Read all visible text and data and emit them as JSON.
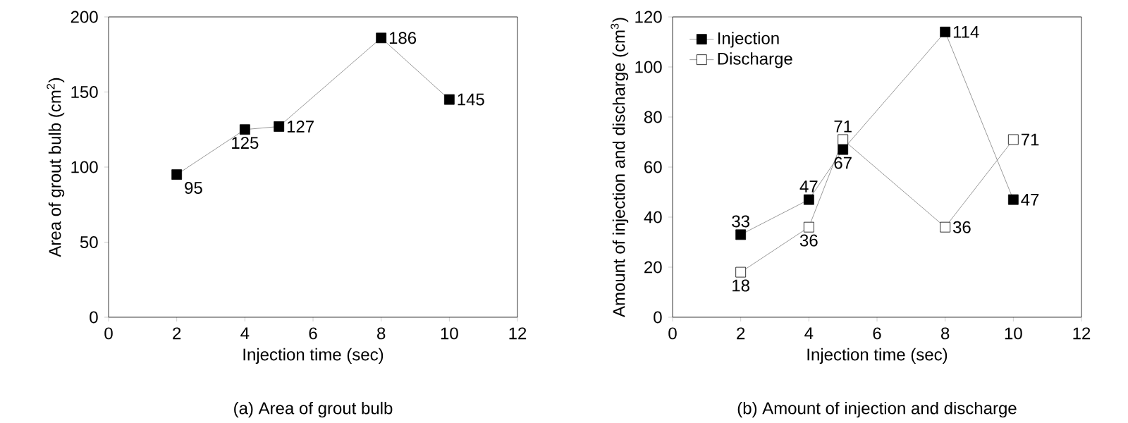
{
  "chart_data": [
    {
      "type": "line",
      "title": "(a) Area of grout bulb",
      "xlabel": "Injection time (sec)",
      "ylabel": "Area of grout bulb (cm$^{2}$)",
      "x": [
        2,
        4,
        5,
        8,
        10
      ],
      "series": [
        {
          "color": "#000000",
          "values": [
            95,
            125,
            127,
            186,
            145
          ]
        }
      ],
      "xlim": [
        0,
        12
      ],
      "ylim": [
        0,
        200
      ],
      "xticks": [
        0,
        2,
        4,
        6,
        8,
        10,
        12
      ],
      "yticks": [
        0,
        50,
        100,
        150,
        200
      ],
      "marker": "square",
      "data_labels": true,
      "legend": false,
      "grid": false
    },
    {
      "type": "line",
      "title": "(b) Amount of injection and discharge",
      "xlabel": "Injection time (sec)",
      "ylabel": "Amount of injection and discharge (cm$^{3}$)",
      "x": [
        2,
        4,
        5,
        8,
        10
      ],
      "series": [
        {
          "name": "Injection",
          "color": "#000000",
          "values": [
            33,
            47,
            67,
            114,
            47
          ]
        },
        {
          "name": "Discharge",
          "color": "#000000",
          "values": [
            18,
            36,
            71,
            36,
            71
          ]
        }
      ],
      "xlim": [
        0,
        12
      ],
      "ylim": [
        0,
        120
      ],
      "xticks": [
        0,
        2,
        4,
        6,
        8,
        10,
        12
      ],
      "yticks": [
        0,
        20,
        40,
        60,
        80,
        100,
        120
      ],
      "marker": "square",
      "data_labels": true,
      "legend": "top left",
      "grid": false
    }
  ]
}
